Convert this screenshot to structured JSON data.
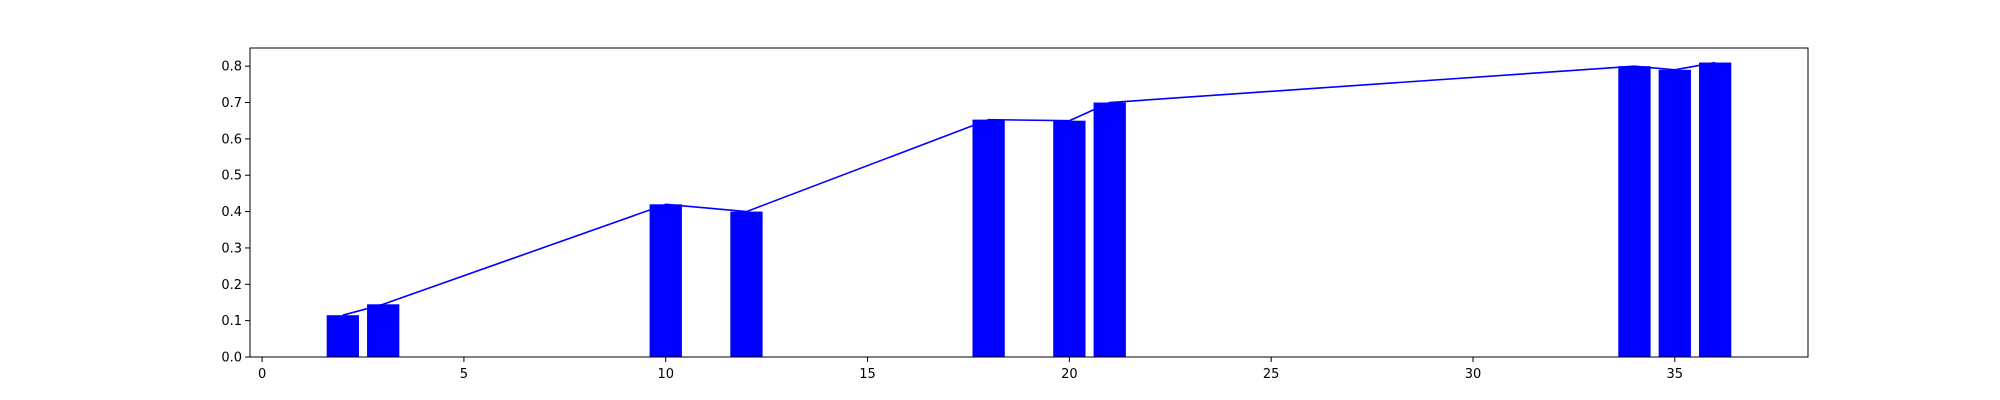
{
  "chart_data": {
    "type": "bar",
    "x": [
      2,
      3,
      10,
      12,
      18,
      20,
      21,
      34,
      35,
      36
    ],
    "values": [
      0.115,
      0.145,
      0.42,
      0.4,
      0.653,
      0.65,
      0.7,
      0.8,
      0.79,
      0.81
    ],
    "bar_width": 0.8,
    "overlay_line": {
      "x": [
        2,
        3,
        10,
        12,
        18,
        20,
        21,
        34,
        35,
        36
      ],
      "y": [
        0.115,
        0.145,
        0.42,
        0.4,
        0.653,
        0.65,
        0.7,
        0.8,
        0.79,
        0.81
      ]
    },
    "xlim": [
      -0.3,
      38.3
    ],
    "ylim": [
      0,
      0.85
    ],
    "xticks": [
      0,
      5,
      10,
      15,
      20,
      25,
      30,
      35
    ],
    "yticks": [
      0.0,
      0.1,
      0.2,
      0.3,
      0.4,
      0.5,
      0.6,
      0.7,
      0.8
    ],
    "xtick_labels": [
      "0",
      "5",
      "10",
      "15",
      "20",
      "25",
      "30",
      "35"
    ],
    "ytick_labels": [
      "0.0",
      "0.1",
      "0.2",
      "0.3",
      "0.4",
      "0.5",
      "0.6",
      "0.7",
      "0.8"
    ],
    "title": "",
    "xlabel": "",
    "ylabel": "",
    "grid": false,
    "legend": "none",
    "colors": {
      "bars": "#0000ff",
      "line": "#0000ff",
      "axes": "#000000"
    }
  }
}
